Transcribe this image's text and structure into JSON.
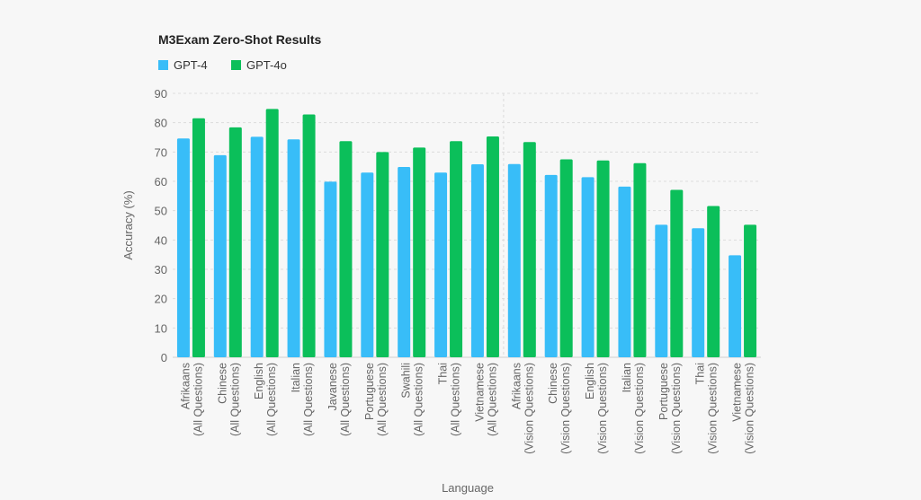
{
  "chart_data": {
    "type": "bar",
    "title": "M3Exam Zero-Shot Results",
    "xlabel": "Language",
    "ylabel": "Accuracy (%)",
    "ylim": [
      0,
      90
    ],
    "yticks": [
      0,
      10,
      20,
      30,
      40,
      50,
      60,
      70,
      80,
      90
    ],
    "grid": true,
    "legend_position": "top-left",
    "categories": [
      [
        "Afrikaans",
        "(All Questions)"
      ],
      [
        "Chinese",
        "(All Questions)"
      ],
      [
        "English",
        "(All Questions)"
      ],
      [
        "Italian",
        "(All Questions)"
      ],
      [
        "Javanese",
        "(All Questions)"
      ],
      [
        "Portuguese",
        "(All Questions)"
      ],
      [
        "Swahili",
        "(All Questions)"
      ],
      [
        "Thai",
        "(All Questions)"
      ],
      [
        "Vietnamese",
        "(All Questions)"
      ],
      [
        "Afrikaans",
        "(Vision Questions)"
      ],
      [
        "Chinese",
        "(Vision Questions)"
      ],
      [
        "English",
        "(Vision Questions)"
      ],
      [
        "Italian",
        "(Vision Questions)"
      ],
      [
        "Portuguese",
        "(Vision Questions)"
      ],
      [
        "Thai",
        "(Vision Questions)"
      ],
      [
        "Vietnamese",
        "(Vision Questions)"
      ]
    ],
    "series": [
      {
        "name": "GPT-4",
        "color": "#38bdf8",
        "values": [
          74.6,
          68.9,
          75.2,
          74.3,
          59.9,
          63.0,
          64.9,
          63.0,
          65.8,
          65.9,
          62.2,
          61.4,
          58.2,
          45.2,
          44.0,
          34.8
        ]
      },
      {
        "name": "GPT-4o",
        "color": "#0bbf5a",
        "values": [
          81.5,
          78.4,
          84.7,
          82.8,
          73.7,
          70.0,
          71.5,
          73.7,
          75.3,
          73.4,
          67.5,
          67.1,
          66.2,
          57.1,
          51.6,
          45.2
        ]
      }
    ]
  }
}
